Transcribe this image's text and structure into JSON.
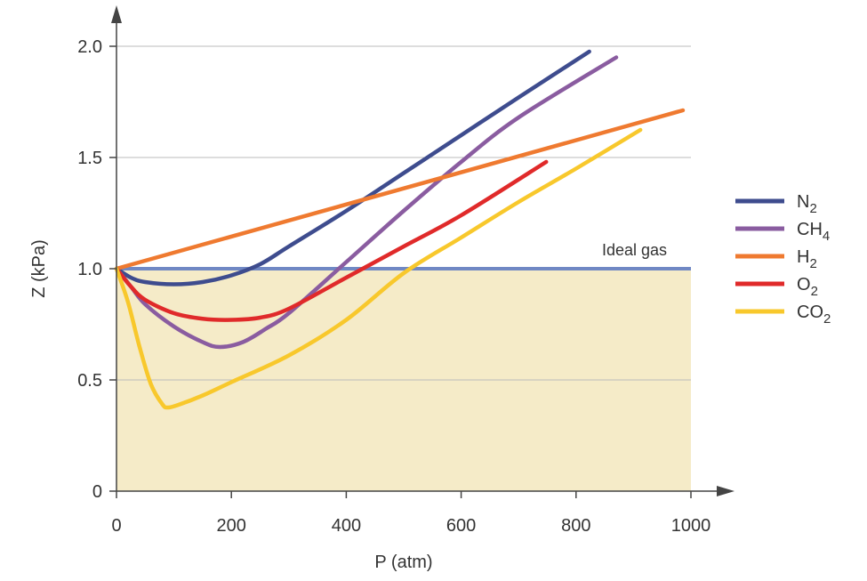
{
  "chart_data": {
    "type": "line",
    "title": "",
    "xlabel": "P (atm)",
    "ylabel": "Z (kPa)",
    "xlim": [
      0,
      1000
    ],
    "ylim": [
      0,
      2.0
    ],
    "xticks": [
      0,
      200,
      400,
      600,
      800,
      1000
    ],
    "xtick_labels": [
      "0",
      "200",
      "400",
      "600",
      "800",
      "1000"
    ],
    "yticks": [
      0,
      0.5,
      1.0,
      1.5,
      2.0
    ],
    "ytick_labels": [
      "0",
      "0.5",
      "1.0",
      "1.5",
      "2.0"
    ],
    "grid": "horizontal",
    "legend_position": "right",
    "reference_line": {
      "label": "Ideal gas",
      "y": 1.0,
      "color": "#7088c4",
      "shaded_below_color": "#f5ebc8"
    },
    "series": [
      {
        "name": "N2",
        "color": "#3e4c8e",
        "x": [
          0,
          25,
          50,
          100,
          150,
          200,
          250,
          300,
          400,
          500,
          600,
          700,
          823
        ],
        "y": [
          1.0,
          0.96,
          0.94,
          0.93,
          0.94,
          0.97,
          1.02,
          1.1,
          1.26,
          1.43,
          1.6,
          1.77,
          1.976
        ]
      },
      {
        "name": "CH4",
        "color": "#8a5ca0",
        "x": [
          0,
          25,
          50,
          100,
          150,
          180,
          220,
          260,
          300,
          400,
          500,
          600,
          700,
          870
        ],
        "y": [
          1.0,
          0.92,
          0.84,
          0.74,
          0.67,
          0.648,
          0.67,
          0.73,
          0.8,
          1.03,
          1.26,
          1.48,
          1.68,
          1.95
        ]
      },
      {
        "name": "H2",
        "color": "#ef7a30",
        "x": [
          0,
          986
        ],
        "y": [
          1.0,
          1.712
        ]
      },
      {
        "name": "O2",
        "color": "#e02a2a",
        "x": [
          0,
          25,
          50,
          100,
          150,
          200,
          250,
          300,
          400,
          500,
          600,
          748
        ],
        "y": [
          1.0,
          0.92,
          0.86,
          0.8,
          0.775,
          0.77,
          0.78,
          0.82,
          0.96,
          1.1,
          1.24,
          1.48
        ]
      },
      {
        "name": "CO2",
        "color": "#f8c82c",
        "x": [
          0,
          20,
          40,
          60,
          80,
          90,
          110,
          150,
          200,
          300,
          400,
          500,
          600,
          700,
          800,
          912
        ],
        "y": [
          1.0,
          0.85,
          0.65,
          0.48,
          0.39,
          0.376,
          0.39,
          0.43,
          0.49,
          0.61,
          0.77,
          0.98,
          1.14,
          1.3,
          1.45,
          1.624
        ]
      }
    ]
  }
}
